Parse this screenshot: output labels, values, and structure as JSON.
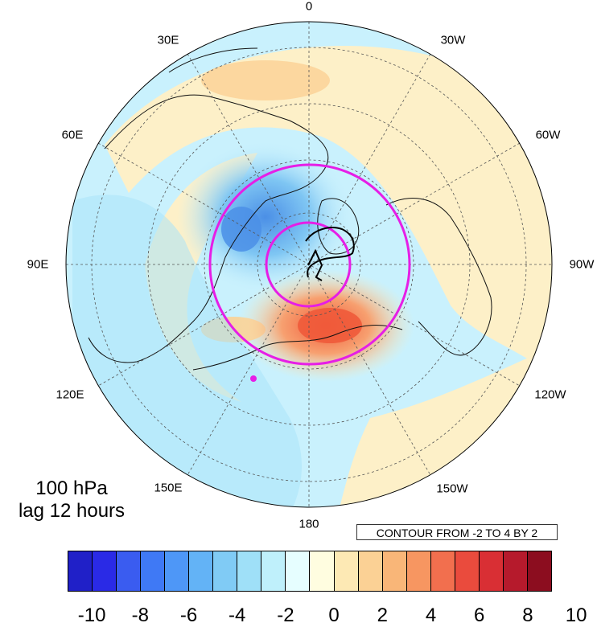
{
  "map": {
    "projection": "north-polar-stereographic",
    "field_colors": {
      "ocean_shading": "#c9f1fd",
      "land_shading": "#fdf2c9",
      "negative_core": "#5fa8f0",
      "positive_core": "#f27350",
      "coastline": "#111111",
      "grid": "#555555"
    },
    "trajectory_color": "#000000",
    "circle_color": "#e61ee6",
    "marker_color": "#e61ee6",
    "longitude_labels": [
      "0",
      "30W",
      "60W",
      "90W",
      "120W",
      "150W",
      "180",
      "150E",
      "120E",
      "90E",
      "60E",
      "30E"
    ]
  },
  "panel": {
    "level": "100 hPa",
    "lag": "lag 12 hours",
    "contour_info": "CONTOUR FROM -2 TO 4 BY 2"
  },
  "colorbar": {
    "colors": [
      "#2020c8",
      "#2a2ae6",
      "#3a5cf0",
      "#3f79f5",
      "#4e97f7",
      "#63b3f6",
      "#80cbf5",
      "#9fe0f8",
      "#bff0fb",
      "#e6feff",
      "#fffde0",
      "#fde9b4",
      "#fbd195",
      "#f9b678",
      "#f79661",
      "#f26f4e",
      "#ea4b3d",
      "#d92f34",
      "#b61a2c",
      "#8c0d1f"
    ],
    "tick_labels": [
      "-10",
      "-8",
      "-6",
      "-4",
      "-2",
      "0",
      "2",
      "4",
      "6",
      "8",
      "10"
    ]
  }
}
